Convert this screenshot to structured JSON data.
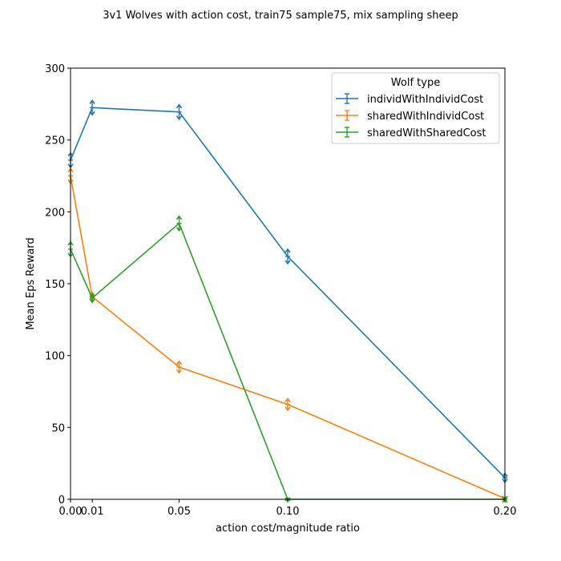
{
  "chart_data": {
    "type": "line",
    "title": "3v1 Wolves with action cost, train75 sample75, mix sampling sheep",
    "xlabel": "action cost/magnitude ratio",
    "ylabel": "Mean Eps Reward",
    "x": [
      0.0,
      0.01,
      0.05,
      0.1,
      0.2
    ],
    "x_tick_labels": [
      "0.00",
      "0.01",
      "0.05",
      "0.10",
      "0.20"
    ],
    "xlim": [
      0.0,
      0.2
    ],
    "ylim": [
      0,
      300
    ],
    "y_ticks": [
      0,
      50,
      100,
      150,
      200,
      250,
      300
    ],
    "grid": false,
    "legend": {
      "title": "Wolf type",
      "placement": "top-right"
    },
    "series": [
      {
        "name": "individWithIndividCost",
        "color": "#1f77b4",
        "values": [
          236,
          272.5,
          269.5,
          169,
          15
        ],
        "errors": [
          5,
          5,
          5,
          5,
          3
        ]
      },
      {
        "name": "sharedWithIndividCost",
        "color": "#ff7f0e",
        "values": [
          225,
          141,
          92,
          66,
          0.5
        ],
        "errors": [
          5,
          3,
          4,
          4,
          1
        ]
      },
      {
        "name": "sharedWithSharedCost",
        "color": "#2ca02c",
        "values": [
          174,
          140,
          192,
          0,
          0
        ],
        "errors": [
          5,
          3,
          5,
          1,
          0
        ]
      }
    ]
  }
}
